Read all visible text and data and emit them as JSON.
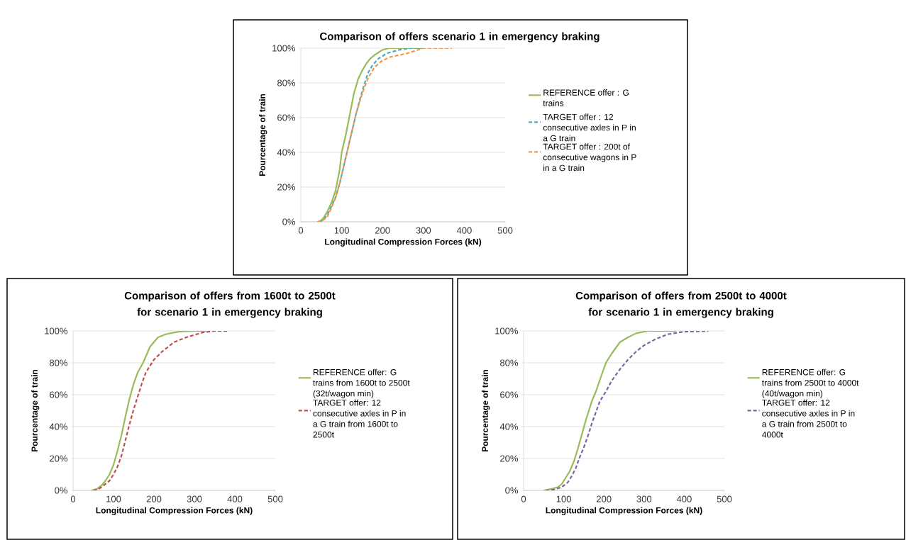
{
  "chart_data": [
    {
      "type": "line",
      "title": "Comparison of offers scenario 1 in emergency braking",
      "xlabel": "Longitudinal Compression Forces (kN)",
      "ylabel": "Pourcentage of train",
      "xlim": [
        0,
        500
      ],
      "xticks": [
        0,
        100,
        200,
        300,
        400,
        500
      ],
      "ylim": [
        0,
        100
      ],
      "yticks": [
        {
          "value": 0,
          "label": "0%"
        },
        {
          "value": 20,
          "label": "20%"
        },
        {
          "value": 40,
          "label": "40%"
        },
        {
          "value": 60,
          "label": "60%"
        },
        {
          "value": 80,
          "label": "80%"
        },
        {
          "value": 100,
          "label": "100%"
        }
      ],
      "grid": "y",
      "legend": "right",
      "series": [
        {
          "name": "REFERENCE offer : G trains",
          "color": "#9bbb59",
          "line_style": "solid",
          "x": [
            45,
            55,
            65,
            75,
            85,
            95,
            100,
            110,
            120,
            130,
            140,
            150,
            160,
            170,
            180,
            200,
            215,
            300
          ],
          "values": [
            0,
            2,
            6,
            11,
            18,
            30,
            40,
            50,
            62,
            74,
            82,
            87,
            91,
            94,
            96,
            99,
            100,
            100
          ]
        },
        {
          "name": "TARGET offer : 12 consecutive axles in P in a G train",
          "color": "#4bacc6",
          "line_style": "dashed",
          "x": [
            45,
            55,
            65,
            75,
            85,
            95,
            105,
            115,
            125,
            135,
            145,
            155,
            165,
            175,
            190,
            210,
            240,
            270,
            300
          ],
          "values": [
            0,
            1,
            4,
            9,
            14,
            22,
            32,
            42,
            52,
            62,
            71,
            79,
            86,
            90,
            94,
            97,
            99,
            100,
            100
          ]
        },
        {
          "name": "TARGET offer : 200t of consecutive wagons in P in a G train",
          "color": "#f79646",
          "line_style": "dashed",
          "x": [
            40,
            55,
            65,
            75,
            85,
            95,
            105,
            115,
            125,
            135,
            145,
            155,
            165,
            180,
            200,
            220,
            260,
            300,
            370
          ],
          "values": [
            0,
            1,
            3,
            8,
            14,
            22,
            32,
            42,
            52,
            62,
            70,
            77,
            83,
            89,
            93,
            95,
            97,
            100,
            100
          ]
        }
      ]
    },
    {
      "type": "line",
      "title": "Comparison of offers from 1600t to 2500t for scenario 1 in emergency braking",
      "xlabel": "Longitudinal Compression Forces (kN)",
      "ylabel": "Pourcentage of train",
      "xlim": [
        0,
        500
      ],
      "xticks": [
        0,
        100,
        200,
        300,
        400,
        500
      ],
      "ylim": [
        0,
        100
      ],
      "yticks": [
        {
          "value": 0,
          "label": "0%"
        },
        {
          "value": 20,
          "label": "20%"
        },
        {
          "value": 40,
          "label": "40%"
        },
        {
          "value": 60,
          "label": "60%"
        },
        {
          "value": 80,
          "label": "80%"
        },
        {
          "value": 100,
          "label": "100%"
        }
      ],
      "grid": "y",
      "legend": "right",
      "series": [
        {
          "name": "REFERENCE offer: G trains from 1600t to 2500t (32t/wagon min)",
          "color": "#9bbb59",
          "line_style": "solid",
          "x": [
            45,
            60,
            70,
            80,
            90,
            100,
            110,
            120,
            130,
            140,
            150,
            160,
            175,
            190,
            200,
            210,
            230,
            260,
            300,
            330
          ],
          "values": [
            0,
            1,
            3,
            6,
            10,
            16,
            25,
            35,
            47,
            58,
            67,
            74,
            81,
            90,
            93,
            96,
            98,
            99.5,
            100,
            100
          ]
        },
        {
          "name": "TARGET offer: 12 consecutive axles in P in a G train from 1600t to 2500t",
          "color": "#c0504d",
          "line_style": "dashed",
          "x": [
            50,
            60,
            70,
            80,
            90,
            100,
            110,
            120,
            130,
            140,
            150,
            160,
            170,
            180,
            200,
            220,
            250,
            280,
            320,
            350,
            385
          ],
          "values": [
            0,
            0.5,
            2,
            4,
            6,
            10,
            15,
            22,
            32,
            42,
            51,
            59,
            67,
            74,
            82,
            87,
            93,
            96,
            99,
            100,
            100
          ]
        }
      ]
    },
    {
      "type": "line",
      "title": "Comparison of offers from 2500t to 4000t for scenario 1 in emergency braking",
      "xlabel": "Longitudinal Compression Forces (kN)",
      "ylabel": "Pourcentage of train",
      "xlim": [
        0,
        500
      ],
      "xticks": [
        0,
        100,
        200,
        300,
        400,
        500
      ],
      "ylim": [
        0,
        100
      ],
      "yticks": [
        {
          "value": 0,
          "label": "0%"
        },
        {
          "value": 20,
          "label": "20%"
        },
        {
          "value": 40,
          "label": "40%"
        },
        {
          "value": 60,
          "label": "60%"
        },
        {
          "value": 80,
          "label": "80%"
        },
        {
          "value": 100,
          "label": "100%"
        }
      ],
      "grid": "y",
      "legend": "right",
      "series": [
        {
          "name": "REFERENCE offer: G trains from 2500t to 4000t (40t/wagon min)",
          "color": "#9bbb59",
          "line_style": "solid",
          "x": [
            50,
            70,
            85,
            95,
            105,
            115,
            125,
            135,
            145,
            155,
            170,
            180,
            195,
            205,
            220,
            240,
            260,
            280,
            310,
            380
          ],
          "values": [
            0,
            1,
            2,
            4,
            8,
            12,
            18,
            26,
            35,
            44,
            56,
            62,
            73,
            80,
            86,
            93,
            96,
            98.5,
            100,
            100
          ]
        },
        {
          "name": "TARGET offer: 12 consecutive axles in P in a G train from 2500t to 4000t",
          "color": "#8064a2",
          "line_style": "dashed",
          "x": [
            55,
            75,
            95,
            110,
            120,
            130,
            140,
            150,
            160,
            170,
            180,
            190,
            205,
            220,
            240,
            260,
            280,
            300,
            330,
            360,
            400,
            460
          ],
          "values": [
            0,
            0.5,
            2,
            5,
            9,
            14,
            21,
            27,
            34,
            42,
            49,
            56,
            62,
            69,
            76,
            82,
            87,
            91,
            95,
            98,
            99.5,
            100
          ]
        }
      ]
    }
  ]
}
